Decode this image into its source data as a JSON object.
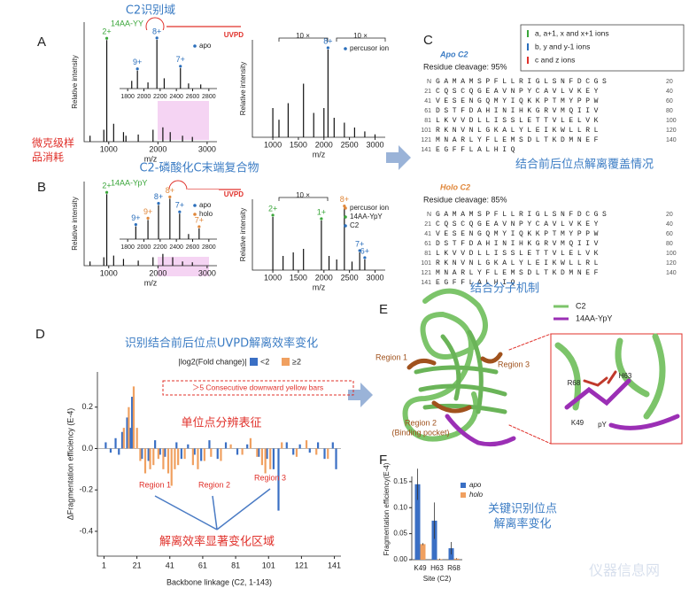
{
  "A": {
    "label": "A",
    "title": "C2识别域",
    "main": {
      "ylabel": "Relative intensity",
      "xlabel": "m/z",
      "ion": "14AA-YY",
      "xlim": [
        500,
        3200
      ],
      "ylim": [
        0,
        1
      ],
      "xticks": [
        1000,
        2000,
        3000
      ],
      "peaks": {
        "x": [
          620,
          900,
          960,
          1100,
          1300,
          1350,
          1600,
          1900,
          2100,
          2250,
          2500,
          2700
        ],
        "values": [
          0.05,
          0.1,
          0.85,
          0.15,
          0.08,
          0.05,
          0.06,
          0.1,
          0.12,
          0.08,
          0.05,
          0.04
        ],
        "labels": [
          null,
          null,
          {
            "text": "2+",
            "color": "#3aa63a"
          },
          null,
          null,
          null,
          null,
          null,
          null,
          null,
          null,
          null
        ]
      }
    },
    "inset": {
      "xlim": [
        1700,
        2900
      ],
      "ylim": [
        0,
        1
      ],
      "xticks": [
        1800,
        2000,
        2200,
        2400,
        2600,
        2800
      ],
      "legend": [
        {
          "name": "apo",
          "color": "#2a6ebb"
        }
      ],
      "peaks": {
        "x": [
          1850,
          1920,
          2050,
          2160,
          2250,
          2450,
          2550,
          2700
        ],
        "values": [
          0.15,
          0.35,
          0.12,
          0.95,
          0.2,
          0.4,
          0.1,
          0.08
        ],
        "labels": [
          null,
          {
            "text": "9+",
            "color": "#2a6ebb"
          },
          null,
          {
            "text": "8+",
            "color": "#2a6ebb"
          },
          null,
          {
            "text": "7+",
            "color": "#2a6ebb"
          },
          null,
          null
        ]
      }
    },
    "uvpd": {
      "tag": "UVPD",
      "ylabel": "Relative intensity",
      "xlabel": "m/z",
      "xlim": [
        600,
        3200
      ],
      "ylim": [
        0,
        1
      ],
      "xticks": [
        1000,
        1500,
        2000,
        2500,
        3000
      ],
      "zoom": [
        "10 ×",
        "10 ×"
      ],
      "legend": [
        {
          "name": "percusor ion",
          "color": "#2a6ebb"
        }
      ],
      "peaks": {
        "x": [
          1000,
          1120,
          1300,
          1600,
          1800,
          2000,
          2080,
          2200,
          2400,
          2600,
          2800,
          3000
        ],
        "values": [
          0.3,
          0.18,
          0.35,
          0.55,
          0.25,
          0.3,
          0.9,
          0.2,
          0.15,
          0.1,
          0.06,
          0.03
        ],
        "labels": [
          null,
          null,
          null,
          null,
          null,
          null,
          {
            "text": "8+",
            "color": "#2a6ebb"
          },
          null,
          null,
          null,
          null,
          null
        ]
      }
    }
  },
  "note": [
    "微克级样",
    "品消耗"
  ],
  "B": {
    "label": "B",
    "title": "C2-磷酸化C末端复合物",
    "main": {
      "ylabel": "Relative intensity",
      "xlabel": "m/z",
      "ion": "14AA-YpY",
      "xlim": [
        500,
        3200
      ],
      "ylim": [
        0,
        1
      ],
      "xticks": [
        1000,
        2000,
        3000
      ],
      "peaks": {
        "x": [
          620,
          900,
          960,
          1100,
          1300,
          1600,
          1900,
          2100,
          2300,
          2500,
          2700
        ],
        "values": [
          0.05,
          0.1,
          0.85,
          0.12,
          0.08,
          0.06,
          0.1,
          0.14,
          0.1,
          0.05,
          0.04
        ],
        "labels": [
          null,
          null,
          {
            "text": "2+",
            "color": "#3aa63a"
          },
          null,
          null,
          null,
          null,
          null,
          null,
          null,
          null
        ]
      }
    },
    "inset": {
      "xlim": [
        1700,
        2900
      ],
      "ylim": [
        0,
        1
      ],
      "xticks": [
        1800,
        2000,
        2200,
        2400,
        2600,
        2800
      ],
      "legend": [
        {
          "name": "apo",
          "color": "#2a6ebb"
        },
        {
          "name": "holo",
          "color": "#e0873a"
        }
      ],
      "peaks": {
        "x": [
          1900,
          2050,
          2180,
          2320,
          2440,
          2550,
          2680
        ],
        "values": [
          0.3,
          0.45,
          0.8,
          0.95,
          0.6,
          0.12,
          0.25
        ],
        "labels": [
          {
            "text": "9+",
            "color": "#2a6ebb"
          },
          {
            "text": "9+",
            "color": "#e0873a"
          },
          {
            "text": "8+",
            "color": "#2a6ebb"
          },
          {
            "text": "8+",
            "color": "#e0873a"
          },
          {
            "text": "7+",
            "color": "#2a6ebb"
          },
          null,
          {
            "text": "7+",
            "color": "#e0873a"
          }
        ]
      }
    },
    "uvpd": {
      "tag": "UVPD",
      "ylabel": "Relative intensity",
      "xlabel": "m/z",
      "xlim": [
        600,
        3200
      ],
      "ylim": [
        0,
        1
      ],
      "xticks": [
        1000,
        1500,
        2000,
        2500,
        3000
      ],
      "zoom": [
        "10 ×"
      ],
      "legend": [
        {
          "name": "percusor ion",
          "color": "#e0873a"
        },
        {
          "name": "14AA-YpY",
          "color": "#3aa63a"
        },
        {
          "name": "C2",
          "color": "#2a6ebb"
        }
      ],
      "peaks": {
        "x": [
          1000,
          1200,
          1400,
          1600,
          1950,
          2100,
          2250,
          2400,
          2550,
          2700,
          2800
        ],
        "values": [
          0.75,
          0.2,
          0.25,
          0.3,
          0.7,
          0.2,
          0.15,
          0.88,
          0.12,
          0.25,
          0.15
        ],
        "labels": [
          {
            "text": "2+",
            "color": "#3aa63a"
          },
          null,
          null,
          null,
          {
            "text": "1+",
            "color": "#3aa63a"
          },
          null,
          null,
          {
            "text": "8+",
            "color": "#e0873a"
          },
          null,
          {
            "text": "7+",
            "color": "#2a6ebb"
          },
          {
            "text": "6+",
            "color": "#2a6ebb"
          }
        ]
      }
    }
  },
  "C": {
    "label": "C",
    "legend": [
      {
        "name": "a, a+1, x and x+1 ions",
        "color": "#3aa63a"
      },
      {
        "name": "b, y and y-1 ions",
        "color": "#2a6ebb"
      },
      {
        "name": "c and z ions",
        "color": "#e0302a"
      }
    ],
    "caption": "结合前后位点解离覆盖情况",
    "apo": {
      "name": "Apo C2",
      "cleavage": "Residue cleavage: 95%",
      "rows": [
        {
          "left": "N",
          "seq": "GAMAMSPFLLRIGLSNFDCGS",
          "right": "20"
        },
        {
          "left": "21",
          "seq": "CQSCQGEAVNPYCAVLVKEY",
          "right": "40"
        },
        {
          "left": "41",
          "seq": "VESENGQMYIQKKPTMYPPW",
          "right": "60"
        },
        {
          "left": "61",
          "seq": "DSTFDAHINIHKGRVMQIIV",
          "right": "80"
        },
        {
          "left": "81",
          "seq": "LKVVDLLISSLETTVLELVK",
          "right": "100"
        },
        {
          "left": "101",
          "seq": "RKNVNLGKALYLEIKWLLRL",
          "right": "120"
        },
        {
          "left": "121",
          "seq": "MNARLYFLEMSDLTKDMNEF",
          "right": "140"
        },
        {
          "left": "141",
          "seq": "EGFFLALHIQ",
          "right": ""
        }
      ]
    },
    "holo": {
      "name": "Holo C2",
      "cleavage": "Residue cleavage: 85%",
      "rows": [
        {
          "left": "N",
          "seq": "GAMAMSPFLLRIGLSNFDCGS",
          "right": "20"
        },
        {
          "left": "21",
          "seq": "CQSCQGEAVNPYCAVLVKEY",
          "right": "40"
        },
        {
          "left": "41",
          "seq": "VESENGQMYIQKKPTMYPPW",
          "right": "60"
        },
        {
          "left": "61",
          "seq": "DSTFDAHINIHKGRVMQIIV",
          "right": "80"
        },
        {
          "left": "81",
          "seq": "LKVVDLLISSLETTVLELVK",
          "right": "100"
        },
        {
          "left": "101",
          "seq": "RKNVNLGKALYLEIKWLLRL",
          "right": "120"
        },
        {
          "left": "121",
          "seq": "MNARLYFLEMSDLTKDMNEF",
          "right": "140"
        },
        {
          "left": "141",
          "seq": "EGFFLALHIQ",
          "right": ""
        }
      ]
    }
  },
  "D": {
    "label": "D",
    "title": "识别结合前后位点UVPD解离效率变化",
    "legend_title": "|log2(Fold change)|",
    "box_text": "＞5 Consecutive downward yellow bars",
    "annotation": "单位点分辨表征",
    "regions": [
      "Region 1",
      "Region 2",
      "Region 3"
    ],
    "region_caption": "解离效率显著变化区域",
    "chart_data": {
      "type": "bar",
      "ylabel": "ΔFragmentation efficiency (E-4)",
      "xlabel": "Backbone linkage (C2, 1-143)",
      "xlim": [
        -3,
        145
      ],
      "xticks": [
        1,
        21,
        41,
        61,
        81,
        101,
        121,
        141
      ],
      "ylim": [
        -0.52,
        0.37
      ],
      "yticks": [
        -0.4,
        -0.2,
        {
          "value": 0,
          "label": "0.0"
        },
        0.2
      ],
      "series": [
        {
          "name": "<2",
          "color": "#3a6fc4",
          "x": [
            2,
            5,
            8,
            10,
            12,
            15,
            17,
            18,
            24,
            28,
            32,
            35,
            38,
            45,
            48,
            52,
            56,
            60,
            65,
            70,
            75,
            82,
            88,
            95,
            100,
            104,
            107,
            112,
            116,
            120,
            126,
            131,
            135,
            140,
            142
          ],
          "values": [
            0.03,
            -0.02,
            0.05,
            -0.03,
            0.08,
            0.15,
            0.1,
            0.25,
            -0.05,
            -0.06,
            0.04,
            -0.03,
            -0.04,
            0.03,
            -0.05,
            0.02,
            -0.03,
            -0.06,
            0.04,
            -0.05,
            0.03,
            -0.03,
            0.02,
            -0.04,
            -0.05,
            -0.1,
            -0.3,
            0.03,
            -0.03,
            0.02,
            -0.02,
            0.03,
            -0.05,
            0.03,
            -0.1
          ]
        },
        {
          "name": "≥2",
          "color": "#f0a060",
          "x": [
            13,
            16,
            19,
            21,
            23,
            26,
            29,
            31,
            34,
            37,
            40,
            42,
            44,
            46,
            50,
            55,
            58,
            62,
            66,
            72,
            78,
            85,
            90,
            94,
            97,
            99,
            102,
            109,
            118,
            124,
            130,
            137
          ],
          "values": [
            0.1,
            0.2,
            0.3,
            0.1,
            -0.06,
            -0.12,
            -0.1,
            -0.08,
            -0.05,
            -0.1,
            -0.12,
            -0.18,
            -0.1,
            -0.08,
            -0.05,
            -0.08,
            -0.1,
            -0.06,
            -0.04,
            -0.06,
            0.02,
            -0.03,
            0.05,
            -0.04,
            -0.08,
            -0.12,
            -0.1,
            0.03,
            -0.04,
            0.04,
            -0.03,
            -0.05
          ]
        }
      ]
    }
  },
  "E": {
    "label": "E",
    "title": "结合分子机制",
    "legend": [
      {
        "name": "C2",
        "color": "#7cc46a"
      },
      {
        "name": "14AA-YpY",
        "color": "#9b2fb5"
      }
    ],
    "region1": "Region 1",
    "region2": [
      "Region 2",
      "(Binding pocket)"
    ],
    "region3": "Region 3",
    "residues": [
      "R68",
      "H63",
      "K49",
      "pY"
    ]
  },
  "F": {
    "label": "F",
    "caption": [
      "关键识别位点",
      "解离率变化"
    ],
    "chart_data": {
      "type": "bar",
      "ylabel": "Fragmentation efficiency(E-4)",
      "xlabel": "Site (C2)",
      "categories": [
        "K49",
        "H63",
        "R68"
      ],
      "ylim": [
        0,
        0.16
      ],
      "yticks": [
        {
          "value": 0,
          "label": "0.00"
        },
        {
          "value": 0.05,
          "label": "0.05"
        },
        {
          "value": 0.1,
          "label": "0.10"
        },
        {
          "value": 0.15,
          "label": "0.15"
        }
      ],
      "series": [
        {
          "name": "apo",
          "color": "#3a6fc4",
          "values": [
            0.145,
            0.075,
            0.022
          ],
          "errors": [
            0.03,
            0.035,
            0.012
          ]
        },
        {
          "name": "holo",
          "color": "#f0a060",
          "values": [
            0.03,
            0.001,
            0.002
          ],
          "errors": [
            0.002,
            0.001,
            0.001
          ]
        }
      ]
    }
  },
  "watermark": "仪器信息网"
}
